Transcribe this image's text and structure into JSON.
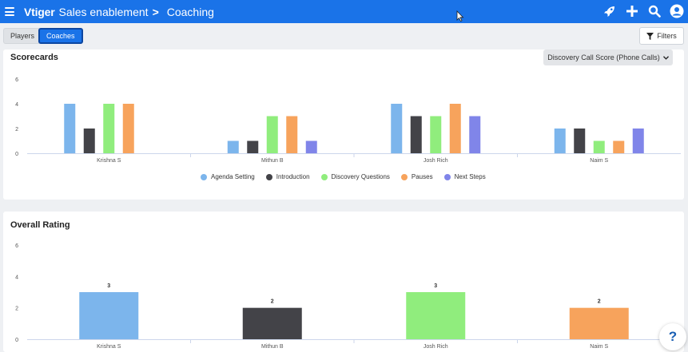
{
  "header": {
    "brand": "Vtiger",
    "breadcrumb_section": "Sales enablement",
    "breadcrumb_separator": ">",
    "breadcrumb_page": "Coaching",
    "icons": [
      "menu-icon",
      "rocket-icon",
      "plus-icon",
      "search-icon",
      "user-icon"
    ]
  },
  "tabs": [
    {
      "label": "Players",
      "active": false
    },
    {
      "label": "Coaches",
      "active": true
    }
  ],
  "filters_label": "Filters",
  "scorecards": {
    "title": "Scorecards",
    "dropdown_value": "Discovery Call Score (Phone Calls)"
  },
  "overall": {
    "title": "Overall Rating"
  },
  "help_label": "?",
  "chart_data": [
    {
      "type": "bar",
      "categories": [
        "Krishna S",
        "Mithun B",
        "Josh Rich",
        "Naim S"
      ],
      "series": [
        {
          "name": "Agenda Setting",
          "color": "#7cb5ec",
          "values": [
            4,
            1,
            4,
            2
          ]
        },
        {
          "name": "Introduction",
          "color": "#434348",
          "values": [
            2,
            1,
            3,
            2
          ]
        },
        {
          "name": "Discovery Questions",
          "color": "#90ed7d",
          "values": [
            4,
            3,
            3,
            1
          ]
        },
        {
          "name": "Pauses",
          "color": "#f7a35c",
          "values": [
            4,
            3,
            4,
            1
          ]
        },
        {
          "name": "Next Steps",
          "color": "#8085e9",
          "values": [
            0,
            1,
            3,
            2
          ]
        }
      ],
      "yticks": [
        "0",
        "2",
        "4",
        "6"
      ],
      "ylim": [
        0,
        6
      ],
      "grid": false,
      "legend": "bottom"
    },
    {
      "type": "bar",
      "categories": [
        "Krishna S",
        "Mithun B",
        "Josh Rich",
        "Naim S"
      ],
      "values": [
        3,
        2,
        3,
        2
      ],
      "value_labels": [
        "3",
        "2",
        "3",
        "2"
      ],
      "colors": [
        "#7cb5ec",
        "#434348",
        "#90ed7d",
        "#f7a35c"
      ],
      "yticks": [
        "0",
        "2",
        "4",
        "6"
      ],
      "ylim": [
        0,
        6
      ],
      "grid": false
    }
  ]
}
